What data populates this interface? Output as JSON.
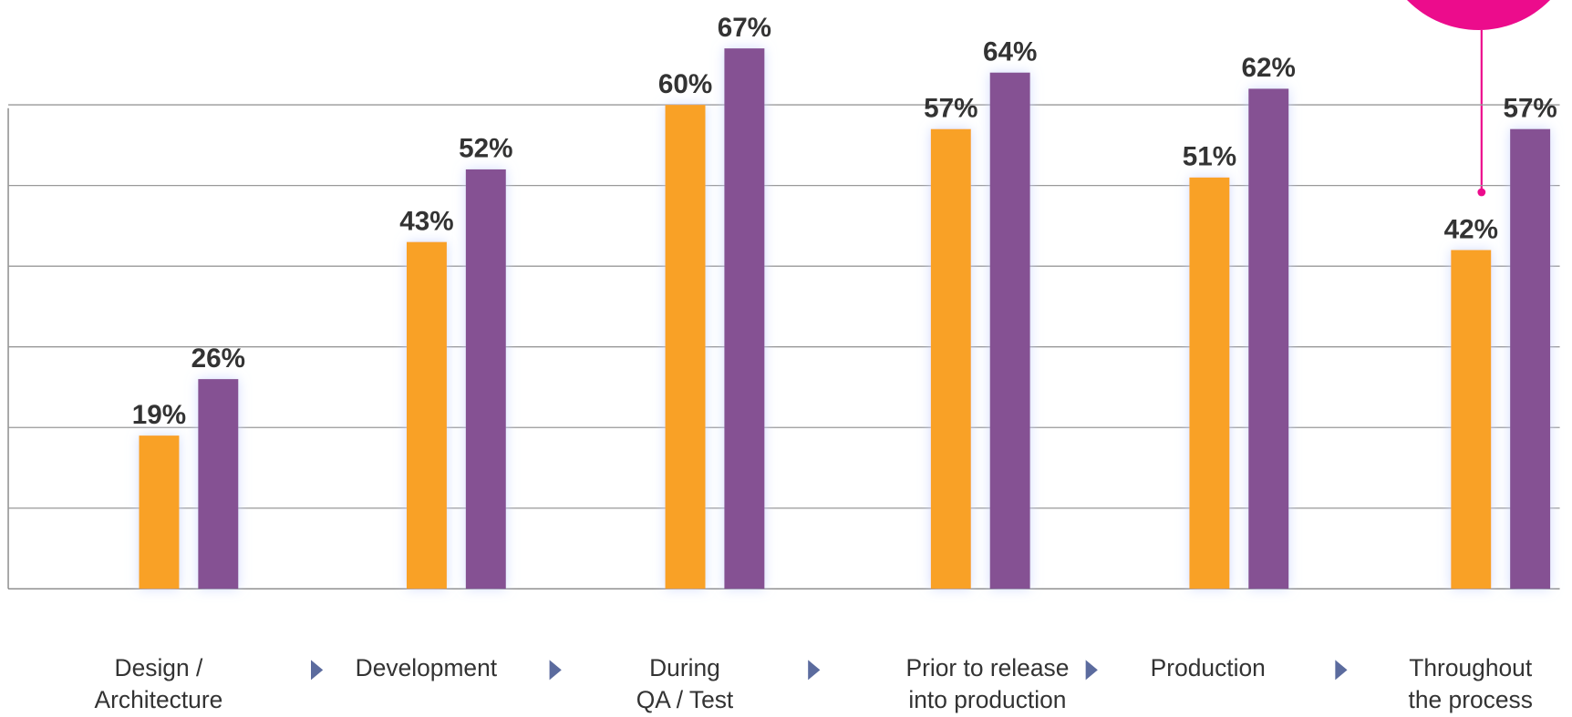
{
  "chart_data": {
    "type": "bar",
    "categories": [
      "Design /\nArchitecture",
      "Development",
      "During\nQA / Test",
      "Prior to release\ninto production",
      "Production",
      "Throughout\nthe process"
    ],
    "series": [
      {
        "color": "#f9a125",
        "values": [
          19,
          43,
          60,
          57,
          51,
          42
        ],
        "value_labels": [
          "19%",
          "43%",
          "60%",
          "57%",
          "51%",
          "42%"
        ]
      },
      {
        "color": "#855193",
        "values": [
          26,
          52,
          67,
          64,
          62,
          57
        ],
        "value_labels": [
          "26%",
          "52%",
          "67%",
          "64%",
          "62%",
          "57%"
        ]
      }
    ],
    "ylim": [
      0,
      73
    ],
    "yticks": [
      0,
      10,
      20,
      30,
      40,
      50,
      60
    ],
    "grid": true
  }
}
